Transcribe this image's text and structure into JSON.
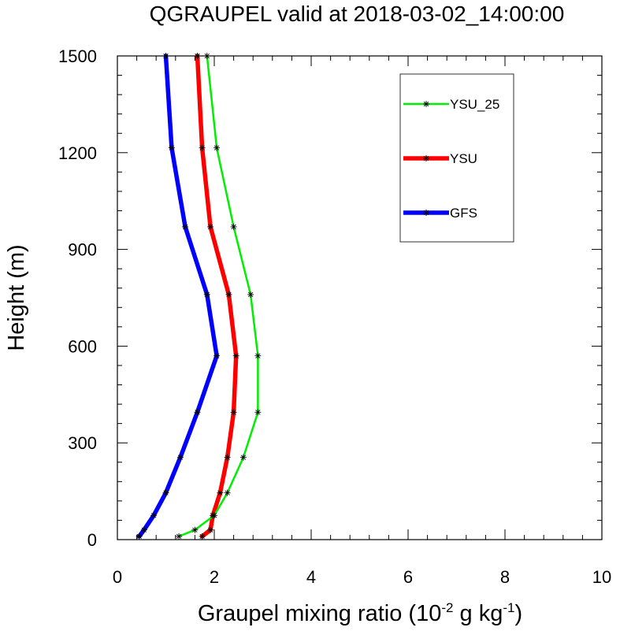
{
  "chart_data": {
    "type": "line",
    "title": "QGRAUPEL valid at 2018-03-02_14:00:00",
    "xlabel_prefix": "Graupel mixing ratio (10",
    "xlabel_exp1": "-2",
    "xlabel_mid": " g kg",
    "xlabel_exp2": "-1",
    "xlabel_suffix": ")",
    "ylabel": "Height (m)",
    "xlim": [
      0,
      10
    ],
    "ylim": [
      0,
      1500
    ],
    "xticks": [
      0,
      2,
      4,
      6,
      8,
      10
    ],
    "yticks": [
      0,
      300,
      600,
      900,
      1200,
      1500
    ],
    "legend_position": "top-right",
    "grid": false,
    "series": [
      {
        "name": "YSU_25",
        "color": "#00ee00",
        "points": [
          [
            1.27,
            10
          ],
          [
            1.6,
            30
          ],
          [
            2.0,
            75
          ],
          [
            2.27,
            145
          ],
          [
            2.6,
            255
          ],
          [
            2.9,
            395
          ],
          [
            2.9,
            570
          ],
          [
            2.75,
            760
          ],
          [
            2.4,
            970
          ],
          [
            2.05,
            1215
          ],
          [
            1.85,
            1500
          ]
        ]
      },
      {
        "name": "YSU",
        "color": "#ff0000",
        "points": [
          [
            1.75,
            10
          ],
          [
            1.92,
            30
          ],
          [
            1.97,
            75
          ],
          [
            2.12,
            145
          ],
          [
            2.27,
            255
          ],
          [
            2.4,
            395
          ],
          [
            2.45,
            570
          ],
          [
            2.3,
            760
          ],
          [
            1.92,
            970
          ],
          [
            1.75,
            1215
          ],
          [
            1.65,
            1500
          ]
        ]
      },
      {
        "name": "GFS",
        "color": "#0000ff",
        "points": [
          [
            0.45,
            10
          ],
          [
            0.55,
            30
          ],
          [
            0.75,
            75
          ],
          [
            1.0,
            145
          ],
          [
            1.3,
            255
          ],
          [
            1.65,
            395
          ],
          [
            2.05,
            570
          ],
          [
            1.85,
            760
          ],
          [
            1.4,
            970
          ],
          [
            1.12,
            1215
          ],
          [
            1.0,
            1500
          ]
        ]
      }
    ]
  }
}
